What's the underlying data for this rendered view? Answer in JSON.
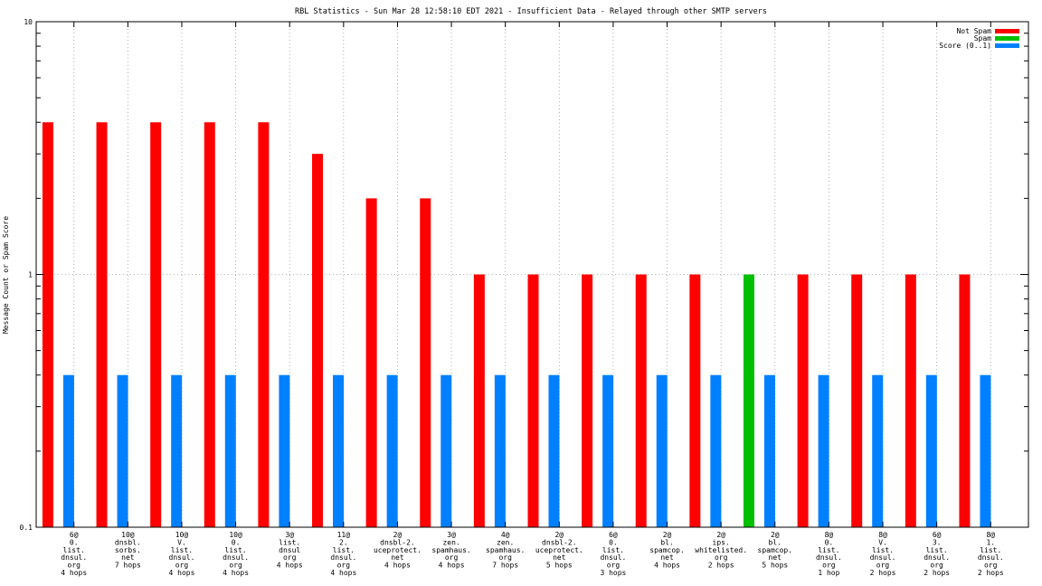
{
  "chart_data": {
    "type": "bar",
    "title": "RBL Statistics - Sun Mar 28 12:58:10 EDT 2021 - Insufficient Data - Relayed through other SMTP servers",
    "xlabel": "",
    "ylabel": "Message Count or Spam Score",
    "yscale": "log",
    "ylim": [
      0.1,
      10
    ],
    "yticks": [
      {
        "value": 0.1,
        "label": "0.1"
      },
      {
        "value": 1,
        "label": "1"
      },
      {
        "value": 10,
        "label": "10"
      }
    ],
    "grid": true,
    "legend_position": "top-right",
    "categories": [
      [
        "6@",
        "0.",
        "list.",
        "dnsul.",
        "org",
        "4 hops"
      ],
      [
        "10@",
        "dnsbl.",
        "sorbs.",
        "net",
        "7 hops"
      ],
      [
        "10@",
        "V.",
        "list.",
        "dnsul.",
        "org",
        "4 hops"
      ],
      [
        "10@",
        "0.",
        "list.",
        "dnsul.",
        "org",
        "4 hops"
      ],
      [
        "3@",
        "list.",
        "dnsul",
        "org",
        "4 hops"
      ],
      [
        "11@",
        "2.",
        "list.",
        "dnsul.",
        "org",
        "4 hops"
      ],
      [
        "2@",
        "dnsbl-2.",
        "uceprotect.",
        "net",
        "4 hops"
      ],
      [
        "3@",
        "zen.",
        "spamhaus.",
        "org",
        "4 hops"
      ],
      [
        "4@",
        "zen.",
        "spamhaus.",
        "org",
        "7 hops"
      ],
      [
        "2@",
        "dnsbl-2.",
        "uceprotect.",
        "net",
        "5 hops"
      ],
      [
        "6@",
        "0.",
        "list.",
        "dnsul.",
        "org",
        "3 hops"
      ],
      [
        "2@",
        "bl.",
        "spamcop.",
        "net",
        "4 hops"
      ],
      [
        "2@",
        "ips.",
        "whitelisted.",
        "org",
        "2 hops"
      ],
      [
        "2@",
        "bl.",
        "spamcop.",
        "net",
        "5 hops"
      ],
      [
        "8@",
        "0.",
        "list.",
        "dnsul.",
        "org",
        "1 hop"
      ],
      [
        "8@",
        "V.",
        "list.",
        "dnsul.",
        "org",
        "2 hops"
      ],
      [
        "6@",
        "3.",
        "list.",
        "dnsul.",
        "org",
        "2 hops"
      ],
      [
        "8@",
        "1.",
        "list.",
        "dnsul.",
        "org",
        "2 hops"
      ]
    ],
    "series": [
      {
        "name": "Not Spam",
        "color": "#ff0000",
        "values": [
          4,
          4,
          4,
          4,
          4,
          3,
          2,
          2,
          1,
          1,
          1,
          1,
          1,
          0,
          1,
          1,
          1,
          1
        ]
      },
      {
        "name": "Spam",
        "color": "#00c000",
        "values": [
          0,
          0,
          0,
          0,
          0,
          0,
          0,
          0,
          0,
          0,
          0,
          0,
          0,
          1,
          0,
          0,
          0,
          0
        ]
      },
      {
        "name": "Score (0..1)",
        "color": "#0080ff",
        "values": [
          0.4,
          0.4,
          0.4,
          0.4,
          0.4,
          0.4,
          0.4,
          0.4,
          0.4,
          0.4,
          0.4,
          0.4,
          0.4,
          0.4,
          0.4,
          0.4,
          0.4,
          0.4
        ]
      }
    ]
  }
}
